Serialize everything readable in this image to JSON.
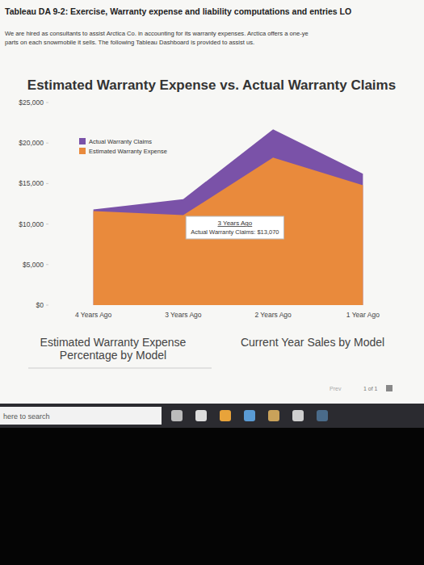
{
  "page": {
    "header": "Tableau DA 9-2: Exercise, Warranty expense and liability computations and entries LO",
    "intro": [
      "We are hired as consultants to assist Arctica Co. in accounting for its warranty expenses. Arctica offers a one-ye",
      "parts on each snowmobile it sells. The following Tableau Dashboard is provided to assist us."
    ],
    "panels": [
      "Estimated Warranty Expense Percentage by Model",
      "Current Year Sales by Model"
    ],
    "pager": [
      "Prev",
      "1 of 1"
    ],
    "search": "here to search"
  },
  "chart_data": {
    "type": "area",
    "title": "Estimated Warranty Expense vs. Actual Warranty Claims",
    "categories": [
      "4 Years Ago",
      "3 Years Ago",
      "2 Years Ago",
      "1 Year Ago"
    ],
    "series": [
      {
        "name": "Actual Warranty Claims",
        "color": "#7a52a8",
        "values": [
          11800,
          13070,
          21700,
          16200
        ]
      },
      {
        "name": "Estimated Warranty Expense",
        "color": "#e98a3c",
        "values": [
          11600,
          11100,
          18200,
          14800
        ]
      }
    ],
    "ylim": [
      0,
      25000
    ],
    "yticks": [
      {
        "value": 0,
        "label": "$0"
      },
      {
        "value": 5000,
        "label": "$5,000"
      },
      {
        "value": 10000,
        "label": "$10,000"
      },
      {
        "value": 15000,
        "label": "$15,000"
      },
      {
        "value": 20000,
        "label": "$20,000"
      },
      {
        "value": 25000,
        "label": "$25,000"
      }
    ],
    "grid": false,
    "stacked": false,
    "legend": "upper left",
    "annotations": [
      {
        "title": "3 Years Ago",
        "text": "Actual Warranty Claims: $13,070"
      }
    ]
  }
}
